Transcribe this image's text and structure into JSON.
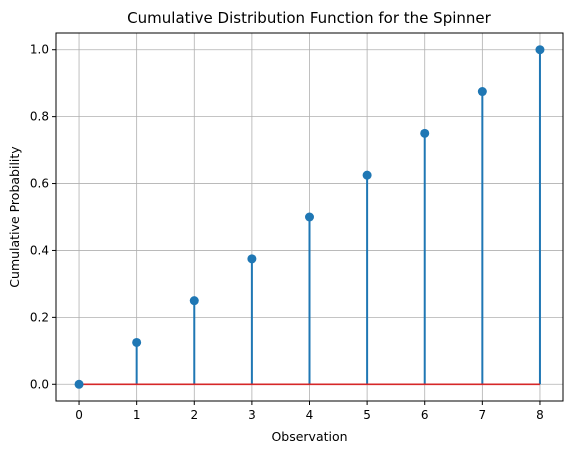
{
  "chart_data": {
    "type": "stem",
    "title": "Cumulative Distribution Function for the Spinner",
    "xlabel": "Observation",
    "ylabel": "Cumulative Probability",
    "x": [
      0,
      1,
      2,
      3,
      4,
      5,
      6,
      7,
      8
    ],
    "y": [
      0.0,
      0.125,
      0.25,
      0.375,
      0.5,
      0.625,
      0.75,
      0.875,
      1.0
    ],
    "xlim": [
      -0.4,
      8.4
    ],
    "ylim": [
      -0.05,
      1.05
    ],
    "xticks": [
      0,
      1,
      2,
      3,
      4,
      5,
      6,
      7,
      8
    ],
    "xtick_labels": [
      "0",
      "1",
      "2",
      "3",
      "4",
      "5",
      "6",
      "7",
      "8"
    ],
    "yticks": [
      0.0,
      0.2,
      0.4,
      0.6,
      0.8,
      1.0
    ],
    "ytick_labels": [
      "0.0",
      "0.2",
      "0.4",
      "0.6",
      "0.8",
      "1.0"
    ],
    "grid": true,
    "baseline": 0.0,
    "colors": {
      "stem": "#1f77b4",
      "marker": "#1f77b4",
      "baseline": "#d62728"
    }
  }
}
